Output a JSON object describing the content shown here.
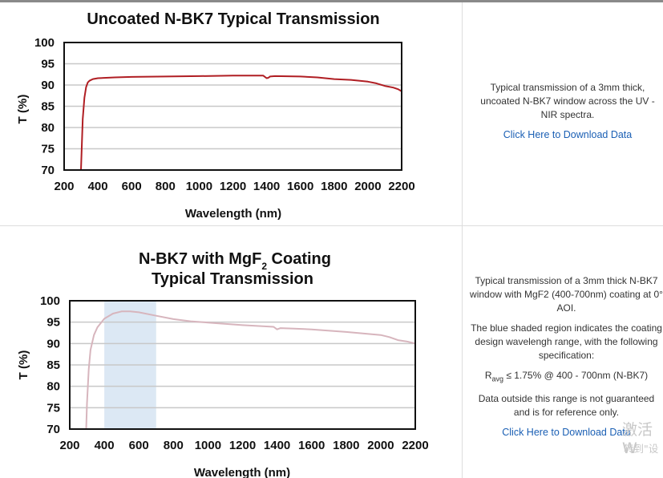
{
  "charts": {
    "c1": {
      "title": "Uncoated N-BK7 Typical Transmission",
      "xlabel": "Wavelength (nm)",
      "ylabel": "T (%)",
      "color": "#b01e23"
    },
    "c2": {
      "title_line1_main": "N-BK7 with MgF",
      "title_line1_sub": "2",
      "title_line1_end": " Coating",
      "title_line2": "Typical Transmission",
      "xlabel": "Wavelength (nm)",
      "ylabel": "T (%)",
      "color": "#d7b5bd",
      "shade_color": "#dce8f4"
    }
  },
  "chart_data": [
    {
      "type": "line",
      "title": "Uncoated N-BK7 Typical Transmission",
      "xlabel": "Wavelength (nm)",
      "ylabel": "T (%)",
      "xlim": [
        200,
        2200
      ],
      "ylim": [
        70,
        100
      ],
      "xticks": [
        200,
        400,
        600,
        800,
        1000,
        1200,
        1400,
        1600,
        1800,
        2000,
        2200
      ],
      "yticks": [
        70,
        75,
        80,
        85,
        90,
        95,
        100
      ],
      "grid": "horizontal",
      "x": [
        300,
        305,
        310,
        320,
        330,
        340,
        350,
        370,
        400,
        500,
        600,
        800,
        1000,
        1200,
        1380,
        1400,
        1410,
        1420,
        1450,
        1600,
        1700,
        1800,
        1900,
        2000,
        2050,
        2100,
        2150,
        2180,
        2200
      ],
      "values": [
        70.0,
        76.0,
        82.0,
        87.0,
        89.5,
        90.6,
        91.0,
        91.4,
        91.6,
        91.8,
        91.9,
        92.0,
        92.1,
        92.2,
        92.2,
        91.6,
        91.7,
        92.0,
        92.1,
        92.0,
        91.8,
        91.4,
        91.2,
        90.8,
        90.4,
        89.8,
        89.4,
        89.0,
        88.5
      ]
    },
    {
      "type": "line",
      "title": "N-BK7 with MgF2 Coating Typical Transmission",
      "xlabel": "Wavelength (nm)",
      "ylabel": "T (%)",
      "xlim": [
        200,
        2200
      ],
      "ylim": [
        70,
        100
      ],
      "xticks": [
        200,
        400,
        600,
        800,
        1000,
        1200,
        1400,
        1600,
        1800,
        2000,
        2200
      ],
      "yticks": [
        70,
        75,
        80,
        85,
        90,
        95,
        100
      ],
      "grid": "horizontal",
      "shaded_range": [
        400,
        700
      ],
      "x": [
        295,
        300,
        310,
        320,
        340,
        360,
        380,
        400,
        450,
        500,
        550,
        600,
        700,
        800,
        900,
        1000,
        1200,
        1380,
        1400,
        1420,
        1500,
        1600,
        1800,
        2000,
        2050,
        2100,
        2150,
        2200
      ],
      "values": [
        70.0,
        76.0,
        84.0,
        88.5,
        92.0,
        93.8,
        94.8,
        95.8,
        97.0,
        97.5,
        97.5,
        97.3,
        96.5,
        95.7,
        95.2,
        94.9,
        94.3,
        93.9,
        93.3,
        93.6,
        93.5,
        93.3,
        92.7,
        92.0,
        91.5,
        90.8,
        90.5,
        90.0
      ]
    }
  ],
  "panels": {
    "p1": {
      "description": "Typical transmission of a 3mm thick, uncoated N-BK7 window across the UV - NIR spectra.",
      "link": "Click Here to Download Data"
    },
    "p2": {
      "description": "Typical transmission of a 3mm thick N-BK7 window with MgF2 (400-700nm) coating at 0° AOI.",
      "shaded_note": "The blue shaded region indicates the coating design wavelengh range, with the following specification:",
      "spec_prefix": "R",
      "spec_sub": "avg",
      "spec_rest": " ≤ 1.75% @ 400 - 700nm (N-BK7)",
      "disclaimer": "Data outside this range is not guaranteed and is for reference only.",
      "link": "Click Here to Download Data"
    }
  },
  "watermark": {
    "line1": "激活 W",
    "line2": "转到\"设"
  }
}
